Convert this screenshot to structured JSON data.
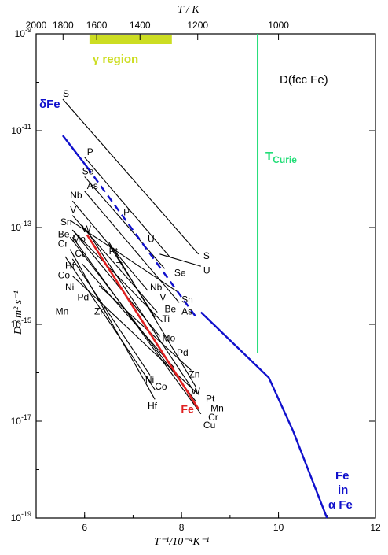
{
  "chart_data": {
    "type": "line",
    "title": "D(fcc Fe)",
    "xlabel": "T⁻¹/10⁻⁴K⁻¹",
    "ylabel": "D / m² s⁻¹",
    "top_axis_label": "T / K",
    "xlim": [
      5,
      12
    ],
    "ylim_log10": [
      -19,
      -9
    ],
    "y_scale": "log",
    "x_ticks": [
      "6",
      "8",
      "10",
      "12"
    ],
    "x_tick_values": [
      6,
      8,
      10,
      12
    ],
    "y_ticks": [
      {
        "base": "10",
        "exp": "-9",
        "value": -9
      },
      {
        "base": "10",
        "exp": "-11",
        "value": -11
      },
      {
        "base": "10",
        "exp": "-13",
        "value": -13
      },
      {
        "base": "10",
        "exp": "-15",
        "value": -15
      },
      {
        "base": "10",
        "exp": "-17",
        "value": -17
      },
      {
        "base": "10",
        "exp": "-19",
        "value": -19
      }
    ],
    "top_ticks": [
      {
        "label": "2000",
        "T": 2000
      },
      {
        "label": "1800",
        "T": 1800
      },
      {
        "label": "1600",
        "T": 1600
      },
      {
        "label": "1400",
        "T": 1400
      },
      {
        "label": "1200",
        "T": 1200
      },
      {
        "label": "1000",
        "T": 1000
      }
    ],
    "gamma_region": {
      "label": "γ region",
      "x": [
        6.1,
        7.8
      ],
      "color": "#ccdd22"
    },
    "curie": {
      "label": "T",
      "subscript": "Curie",
      "x": 9.57,
      "y_top": -9,
      "y_bottom": -15.6,
      "color": "#22dd77"
    },
    "delta_fe_label": "δFe",
    "alpha_fe_label": [
      "Fe",
      "in",
      "α Fe"
    ],
    "fe_self": {
      "label": "Fe",
      "color": "#e02020",
      "points": [
        [
          6.05,
          -13.15
        ],
        [
          8.35,
          -16.75
        ]
      ]
    },
    "fe_in_fe": {
      "color": "#1010cc",
      "delta_points": [
        [
          5.55,
          -11.1
        ],
        [
          6.05,
          -11.75
        ]
      ],
      "dashed_points": [
        [
          6.05,
          -11.75
        ],
        [
          8.3,
          -14.85
        ]
      ],
      "alpha_points": [
        [
          8.4,
          -14.75
        ],
        [
          9.8,
          -16.1
        ],
        [
          10.3,
          -17.2
        ],
        [
          11.0,
          -19.0
        ]
      ]
    },
    "solute_lines": [
      {
        "name": "S",
        "start": [
          5.55,
          -10.35
        ],
        "end": [
          8.35,
          -13.55
        ]
      },
      {
        "name": "P",
        "start": [
          6.0,
          -11.55
        ],
        "end": [
          7.75,
          -13.6
        ]
      },
      {
        "name": "Se",
        "start": [
          6.0,
          -11.95
        ],
        "end": [
          7.65,
          -13.85
        ]
      },
      {
        "name": "As",
        "start": [
          6.0,
          -12.25
        ],
        "end": [
          7.95,
          -14.55
        ]
      },
      {
        "name": "Nb",
        "start": [
          5.75,
          -12.45
        ],
        "end": [
          7.3,
          -14.3
        ]
      },
      {
        "name": "V",
        "start": [
          5.75,
          -12.75
        ],
        "end": [
          7.5,
          -14.75
        ]
      },
      {
        "name": "Sn",
        "start": [
          5.7,
          -12.85
        ],
        "end": [
          7.95,
          -14.35
        ]
      },
      {
        "name": "Be",
        "start": [
          5.75,
          -13.05
        ],
        "end": [
          7.6,
          -14.95
        ]
      },
      {
        "name": "Cr",
        "start": [
          5.7,
          -13.2
        ],
        "end": [
          8.3,
          -16.6
        ]
      },
      {
        "name": "Mo",
        "start": [
          5.75,
          -13.05
        ],
        "end": [
          7.55,
          -15.25
        ]
      },
      {
        "name": "Cu",
        "start": [
          5.75,
          -13.2
        ],
        "end": [
          8.4,
          -16.85
        ]
      },
      {
        "name": "W",
        "start": [
          6.0,
          -13.0
        ],
        "end": [
          8.2,
          -16.3
        ]
      },
      {
        "name": "Ti",
        "start": [
          6.5,
          -13.35
        ],
        "end": [
          7.45,
          -14.85
        ]
      },
      {
        "name": "Pt",
        "start": [
          6.5,
          -13.3
        ],
        "end": [
          8.3,
          -16.3
        ]
      },
      {
        "name": "U",
        "start": [
          7.55,
          -13.55
        ],
        "end": [
          8.4,
          -13.8
        ]
      },
      {
        "name": "Co",
        "start": [
          5.6,
          -13.6
        ],
        "end": [
          7.45,
          -16.35
        ]
      },
      {
        "name": "Hf",
        "start": [
          5.7,
          -13.45
        ],
        "end": [
          7.45,
          -16.55
        ]
      },
      {
        "name": "Ni",
        "start": [
          5.75,
          -13.65
        ],
        "end": [
          7.35,
          -16.05
        ]
      },
      {
        "name": "Pd",
        "start": [
          5.95,
          -13.75
        ],
        "end": [
          7.85,
          -15.9
        ]
      },
      {
        "name": "Mn",
        "start": [
          5.75,
          -14.0
        ],
        "end": [
          8.35,
          -16.45
        ]
      },
      {
        "name": "Zn",
        "start": [
          6.3,
          -14.2
        ],
        "end": [
          8.2,
          -15.95
        ]
      }
    ],
    "labels": [
      {
        "text": "S",
        "x": 5.55,
        "y": -10.3
      },
      {
        "text": "P",
        "x": 6.05,
        "y": -11.5
      },
      {
        "text": "Se",
        "x": 5.95,
        "y": -11.9
      },
      {
        "text": "As",
        "x": 6.05,
        "y": -12.2
      },
      {
        "text": "Nb",
        "x": 5.7,
        "y": -12.4
      },
      {
        "text": "V",
        "x": 5.7,
        "y": -12.7
      },
      {
        "text": "Sn",
        "x": 5.5,
        "y": -12.95
      },
      {
        "text": "Be",
        "x": 5.45,
        "y": -13.2
      },
      {
        "text": "Cr",
        "x": 5.45,
        "y": -13.4
      },
      {
        "text": "Mo",
        "x": 5.75,
        "y": -13.3
      },
      {
        "text": "Cu",
        "x": 5.8,
        "y": -13.6
      },
      {
        "text": "W",
        "x": 5.95,
        "y": -13.1
      },
      {
        "text": "Pt",
        "x": 6.5,
        "y": -13.55
      },
      {
        "text": "Ti",
        "x": 6.65,
        "y": -13.85
      },
      {
        "text": "P",
        "x": 6.8,
        "y": -12.75
      },
      {
        "text": "U",
        "x": 7.3,
        "y": -13.3
      },
      {
        "text": "Co",
        "x": 5.45,
        "y": -14.05
      },
      {
        "text": "Hf",
        "x": 5.6,
        "y": -13.85
      },
      {
        "text": "Ni",
        "x": 5.6,
        "y": -14.3
      },
      {
        "text": "Pd",
        "x": 5.85,
        "y": -14.5
      },
      {
        "text": "Mn",
        "x": 5.4,
        "y": -14.8
      },
      {
        "text": "Zn",
        "x": 6.2,
        "y": -14.8
      },
      {
        "text": "Se",
        "x": 7.85,
        "y": -14.0
      },
      {
        "text": "Nb",
        "x": 7.35,
        "y": -14.3
      },
      {
        "text": "V",
        "x": 7.55,
        "y": -14.5
      },
      {
        "text": "Be",
        "x": 7.65,
        "y": -14.75
      },
      {
        "text": "Ti",
        "x": 7.6,
        "y": -14.95
      },
      {
        "text": "Sn",
        "x": 8.0,
        "y": -14.55
      },
      {
        "text": "As",
        "x": 8.0,
        "y": -14.8
      },
      {
        "text": "Mo",
        "x": 7.6,
        "y": -15.35
      },
      {
        "text": "Pd",
        "x": 7.9,
        "y": -15.65
      },
      {
        "text": "Zn",
        "x": 8.15,
        "y": -16.1
      },
      {
        "text": "Ni",
        "x": 7.25,
        "y": -16.2
      },
      {
        "text": "Co",
        "x": 7.45,
        "y": -16.35
      },
      {
        "text": "W",
        "x": 8.2,
        "y": -16.45
      },
      {
        "text": "Pt",
        "x": 8.5,
        "y": -16.6
      },
      {
        "text": "Hf",
        "x": 7.3,
        "y": -16.75
      },
      {
        "text": "Mn",
        "x": 8.6,
        "y": -16.8
      },
      {
        "text": "Cr",
        "x": 8.55,
        "y": -16.98
      },
      {
        "text": "Cu",
        "x": 8.45,
        "y": -17.15
      },
      {
        "text": "S",
        "x": 8.45,
        "y": -13.65
      },
      {
        "text": "U",
        "x": 8.45,
        "y": -13.95
      }
    ]
  }
}
